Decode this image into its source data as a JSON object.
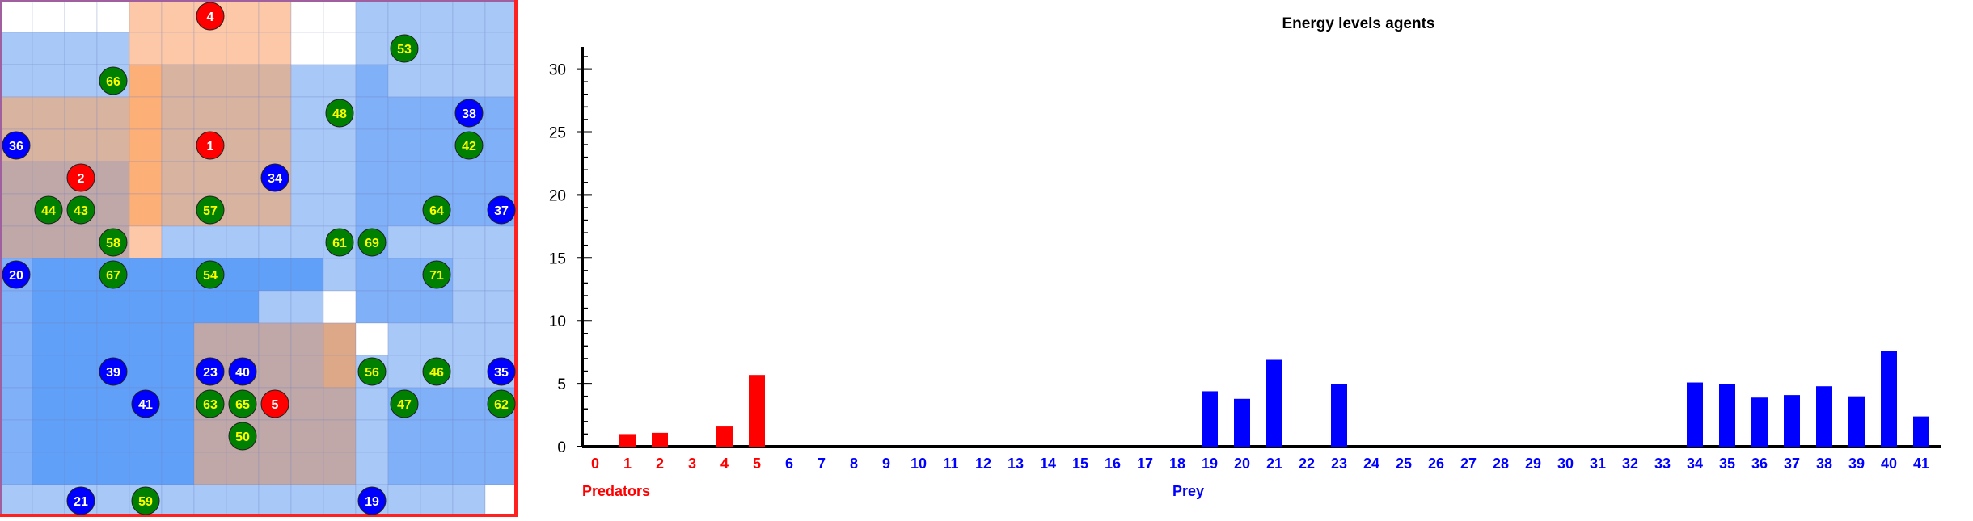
{
  "colors": {
    "predator": "#ff0000",
    "prey": "#0000ff",
    "plant": "#008000",
    "plant_label": "#ffff00",
    "agent_label": "#ffffff",
    "cell_white": "#ffffff",
    "cell_light_blue": "#a8c8f8",
    "cell_medium_blue": "#80b0f8",
    "cell_strong_blue": "#60a0f8",
    "cell_peach": "#fcc8a8",
    "cell_orange": "#fcb078",
    "cell_tan": "#d8b4a0",
    "cell_mauve": "#c0a8a8",
    "cell_tan_dark": "#dca888",
    "gridline": "#7080c0",
    "frame_left": "#a060a0",
    "frame_right": "#ff2020"
  },
  "grid": {
    "cols": 16,
    "rows": 16,
    "legend": {
      "W": "cell_white",
      "L": "cell_light_blue",
      "M": "cell_medium_blue",
      "B": "cell_strong_blue",
      "P": "cell_peach",
      "O": "cell_orange",
      "T": "cell_tan",
      "G": "cell_mauve",
      "D": "cell_tan_dark"
    },
    "rows_map": [
      "WWWWPPPPPWWLLLLL",
      "LLLLPPPPPWWLLLLL",
      "LLLLOTTTTLLMLLLL",
      "TTTTOTTTTLLMMMMM",
      "TTTTOTTTTLLMMMMM",
      "GGGGOTTTTLLMMMMM",
      "GGGGOTTTTLLMMMMM",
      "GGGGPLLLLLLMLLLL",
      "MBBBBBBBBBLMMMLL",
      "MBBBBBBBLLWMMMLL",
      "MBBBBBGGGGDWLLLL",
      "MBBBBBGGGGDLLLLL",
      "MBBBBBGGGGGLMMMM",
      "MBBBBBGGGGGLMMMM",
      "MBBBBBGGGGGLMMMM",
      "LLLLLLLLLLLLLLLW"
    ]
  },
  "agents": [
    {
      "id": "4",
      "type": "predator",
      "col": 6,
      "row": 0
    },
    {
      "id": "1",
      "type": "predator",
      "col": 6,
      "row": 4
    },
    {
      "id": "2",
      "type": "predator",
      "col": 2,
      "row": 5
    },
    {
      "id": "5",
      "type": "predator",
      "col": 8,
      "row": 12
    },
    {
      "id": "36",
      "type": "prey",
      "col": 0,
      "row": 4
    },
    {
      "id": "34",
      "type": "prey",
      "col": 8,
      "row": 5
    },
    {
      "id": "38",
      "type": "prey",
      "col": 14,
      "row": 3
    },
    {
      "id": "37",
      "type": "prey",
      "col": 15,
      "row": 6
    },
    {
      "id": "20",
      "type": "prey",
      "col": 0,
      "row": 8
    },
    {
      "id": "39",
      "type": "prey",
      "col": 3,
      "row": 11
    },
    {
      "id": "23",
      "type": "prey",
      "col": 6,
      "row": 11
    },
    {
      "id": "40",
      "type": "prey",
      "col": 7,
      "row": 11
    },
    {
      "id": "35",
      "type": "prey",
      "col": 15,
      "row": 11
    },
    {
      "id": "41",
      "type": "prey",
      "col": 4,
      "row": 12
    },
    {
      "id": "21",
      "type": "prey",
      "col": 2,
      "row": 15
    },
    {
      "id": "19",
      "type": "prey",
      "col": 11,
      "row": 15
    },
    {
      "id": "53",
      "type": "plant",
      "col": 12,
      "row": 1
    },
    {
      "id": "66",
      "type": "plant",
      "col": 3,
      "row": 2
    },
    {
      "id": "48",
      "type": "plant",
      "col": 10,
      "row": 3
    },
    {
      "id": "42",
      "type": "plant",
      "col": 14,
      "row": 4
    },
    {
      "id": "44",
      "type": "plant",
      "col": 1,
      "row": 6
    },
    {
      "id": "43",
      "type": "plant",
      "col": 2,
      "row": 6
    },
    {
      "id": "57",
      "type": "plant",
      "col": 6,
      "row": 6
    },
    {
      "id": "64",
      "type": "plant",
      "col": 13,
      "row": 6
    },
    {
      "id": "58",
      "type": "plant",
      "col": 3,
      "row": 7
    },
    {
      "id": "61",
      "type": "plant",
      "col": 10,
      "row": 7
    },
    {
      "id": "69",
      "type": "plant",
      "col": 11,
      "row": 7
    },
    {
      "id": "67",
      "type": "plant",
      "col": 3,
      "row": 8
    },
    {
      "id": "54",
      "type": "plant",
      "col": 6,
      "row": 8
    },
    {
      "id": "71",
      "type": "plant",
      "col": 13,
      "row": 8
    },
    {
      "id": "56",
      "type": "plant",
      "col": 11,
      "row": 11
    },
    {
      "id": "46",
      "type": "plant",
      "col": 13,
      "row": 11
    },
    {
      "id": "63",
      "type": "plant",
      "col": 6,
      "row": 12
    },
    {
      "id": "65",
      "type": "plant",
      "col": 7,
      "row": 12
    },
    {
      "id": "47",
      "type": "plant",
      "col": 12,
      "row": 12
    },
    {
      "id": "62",
      "type": "plant",
      "col": 15,
      "row": 12
    },
    {
      "id": "50",
      "type": "plant",
      "col": 7,
      "row": 13
    },
    {
      "id": "59",
      "type": "plant",
      "col": 4,
      "row": 15
    }
  ],
  "chart_data": {
    "type": "bar",
    "title": "Energy levels agents",
    "ylim": [
      0,
      31
    ],
    "yticks": [
      0,
      5,
      10,
      15,
      20,
      25,
      30
    ],
    "y_minor_step": 1,
    "categories": [
      "0",
      "1",
      "2",
      "3",
      "4",
      "5",
      "6",
      "7",
      "8",
      "9",
      "10",
      "11",
      "12",
      "13",
      "14",
      "15",
      "16",
      "17",
      "18",
      "19",
      "20",
      "21",
      "22",
      "23",
      "24",
      "25",
      "26",
      "27",
      "28",
      "29",
      "30",
      "31",
      "32",
      "33",
      "34",
      "35",
      "36",
      "37",
      "38",
      "39",
      "40",
      "41"
    ],
    "predator_count": 6,
    "values": [
      0,
      1.0,
      1.1,
      0,
      1.6,
      5.7,
      0,
      0,
      0,
      0,
      0,
      0,
      0,
      0,
      0,
      0,
      0,
      0,
      0,
      4.4,
      3.8,
      6.9,
      0,
      5.0,
      0,
      0,
      0,
      0,
      0,
      0,
      0,
      0,
      0,
      0,
      5.1,
      5.0,
      3.9,
      4.1,
      4.8,
      4.0,
      7.6,
      2.4
    ],
    "group_labels": {
      "predators": "Predators",
      "prey": "Prey"
    },
    "grid": false
  }
}
